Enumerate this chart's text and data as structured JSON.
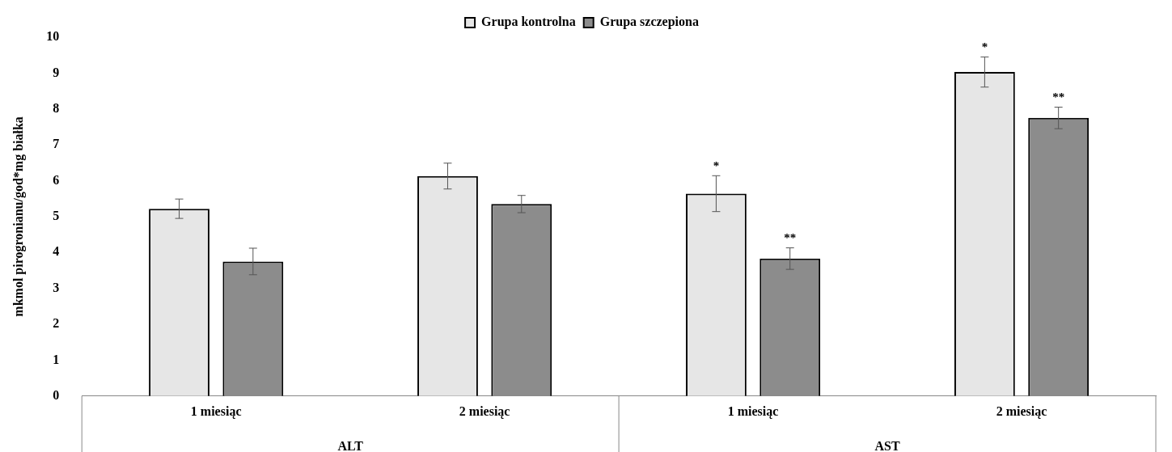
{
  "chart_data": {
    "type": "bar",
    "ylabel": "mkmol pirogronianu/god*mg białka",
    "categories": [
      "1 miesiąc",
      "2 miesiąc",
      "1 miesiąc",
      "2 miesiąc"
    ],
    "series": [
      {
        "name": "Grupa kontrolna",
        "color": "#e6e6e6",
        "values": [
          5.22,
          6.13,
          5.64,
          9.03
        ],
        "errors": [
          0.27,
          0.36,
          0.5,
          0.42
        ],
        "value_labels": [
          null,
          null,
          "*",
          "*"
        ]
      },
      {
        "name": "Grupa szczepiona",
        "color": "#8c8c8c",
        "values": [
          3.75,
          5.35,
          3.83,
          7.75
        ],
        "errors": [
          0.37,
          0.24,
          0.3,
          0.3
        ],
        "value_labels": [
          null,
          null,
          "**",
          "**"
        ]
      }
    ],
    "annotations": [
      "ALT",
      "AST"
    ],
    "ylim": [
      0,
      10
    ],
    "yticks": [
      0,
      1,
      2,
      3,
      4,
      5,
      6,
      7,
      8,
      9,
      10
    ],
    "grid": false,
    "legend": "top"
  }
}
